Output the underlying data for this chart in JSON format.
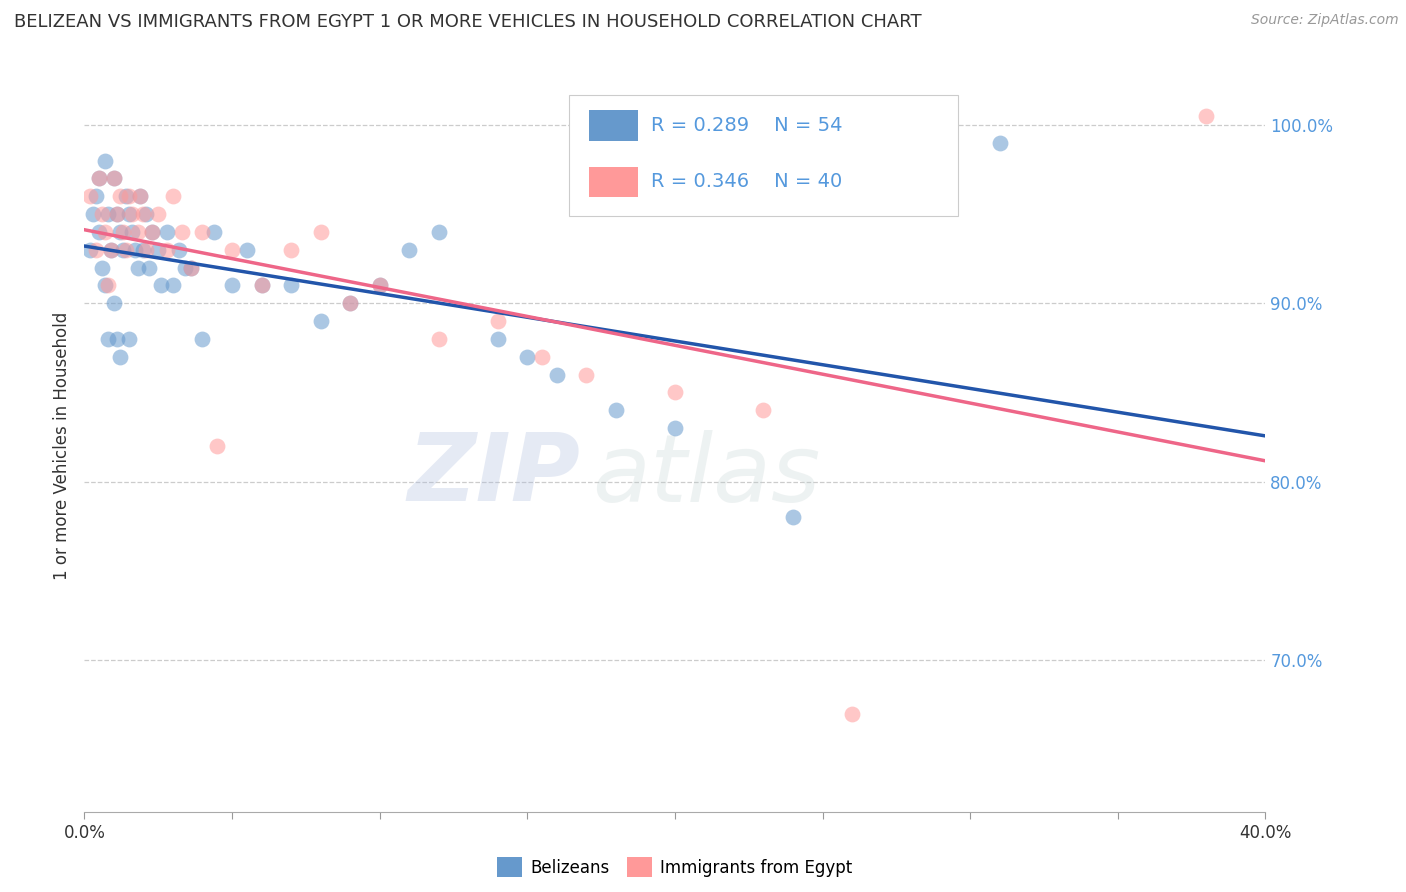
{
  "title": "BELIZEAN VS IMMIGRANTS FROM EGYPT 1 OR MORE VEHICLES IN HOUSEHOLD CORRELATION CHART",
  "source": "Source: ZipAtlas.com",
  "xlabel_belizean": "Belizeans",
  "xlabel_egypt": "Immigrants from Egypt",
  "ylabel": "1 or more Vehicles in Household",
  "xmin": 0.0,
  "xmax": 0.4,
  "ymin": 0.615,
  "ymax": 1.025,
  "r_belizean": 0.289,
  "n_belizean": 54,
  "r_egypt": 0.346,
  "n_egypt": 40,
  "color_belizean": "#6699CC",
  "color_egypt": "#FF9999",
  "trendline_belizean": "#2255AA",
  "trendline_egypt": "#EE6688",
  "watermark_zip": "ZIP",
  "watermark_atlas": "atlas",
  "background_color": "#FFFFFF",
  "grid_color": "#CCCCCC",
  "ytick_color": "#5599DD",
  "yticks": [
    0.7,
    0.8,
    0.9,
    1.0
  ],
  "bx": [
    0.002,
    0.003,
    0.004,
    0.005,
    0.005,
    0.006,
    0.007,
    0.007,
    0.008,
    0.008,
    0.009,
    0.01,
    0.01,
    0.011,
    0.011,
    0.012,
    0.012,
    0.013,
    0.014,
    0.015,
    0.015,
    0.016,
    0.017,
    0.018,
    0.019,
    0.02,
    0.021,
    0.022,
    0.023,
    0.025,
    0.026,
    0.028,
    0.03,
    0.032,
    0.034,
    0.036,
    0.04,
    0.044,
    0.05,
    0.055,
    0.06,
    0.07,
    0.08,
    0.09,
    0.1,
    0.11,
    0.12,
    0.14,
    0.15,
    0.16,
    0.18,
    0.2,
    0.24,
    0.31
  ],
  "by": [
    0.93,
    0.95,
    0.96,
    0.97,
    0.94,
    0.92,
    0.98,
    0.91,
    0.95,
    0.88,
    0.93,
    0.97,
    0.9,
    0.95,
    0.88,
    0.94,
    0.87,
    0.93,
    0.96,
    0.95,
    0.88,
    0.94,
    0.93,
    0.92,
    0.96,
    0.93,
    0.95,
    0.92,
    0.94,
    0.93,
    0.91,
    0.94,
    0.91,
    0.93,
    0.92,
    0.92,
    0.88,
    0.94,
    0.91,
    0.93,
    0.91,
    0.91,
    0.89,
    0.9,
    0.91,
    0.93,
    0.94,
    0.88,
    0.87,
    0.86,
    0.84,
    0.83,
    0.78,
    0.99
  ],
  "ex": [
    0.002,
    0.004,
    0.005,
    0.006,
    0.007,
    0.008,
    0.009,
    0.01,
    0.011,
    0.012,
    0.013,
    0.014,
    0.015,
    0.016,
    0.018,
    0.019,
    0.02,
    0.021,
    0.023,
    0.025,
    0.028,
    0.03,
    0.033,
    0.036,
    0.04,
    0.045,
    0.05,
    0.06,
    0.07,
    0.08,
    0.09,
    0.1,
    0.12,
    0.14,
    0.155,
    0.17,
    0.2,
    0.23,
    0.26,
    0.38
  ],
  "ey": [
    0.96,
    0.93,
    0.97,
    0.95,
    0.94,
    0.91,
    0.93,
    0.97,
    0.95,
    0.96,
    0.94,
    0.93,
    0.96,
    0.95,
    0.94,
    0.96,
    0.95,
    0.93,
    0.94,
    0.95,
    0.93,
    0.96,
    0.94,
    0.92,
    0.94,
    0.82,
    0.93,
    0.91,
    0.93,
    0.94,
    0.9,
    0.91,
    0.88,
    0.89,
    0.87,
    0.86,
    0.85,
    0.84,
    0.67,
    1.005
  ]
}
